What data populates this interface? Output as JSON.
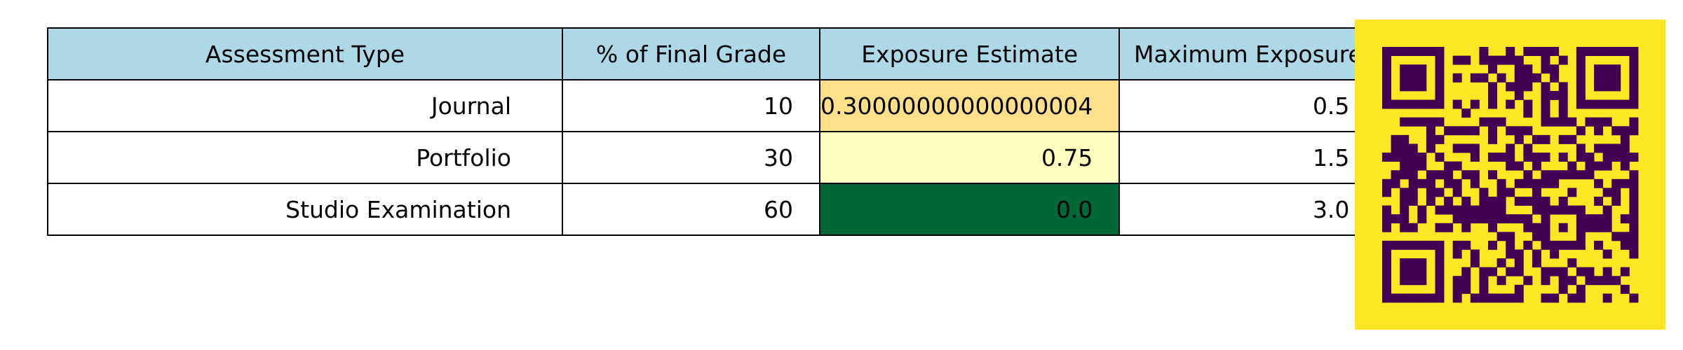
{
  "chart_data": {
    "type": "table",
    "columns": [
      "Assessment Type",
      "% of Final Grade",
      "Exposure Estimate",
      "Maximum Exposure"
    ],
    "rows": [
      {
        "type": "Journal",
        "pct": "10",
        "exposure": "0.30000000000000004",
        "max": "0.5"
      },
      {
        "type": "Portfolio",
        "pct": "30",
        "exposure": "0.75",
        "max": "1.5"
      },
      {
        "type": "Studio Examination",
        "pct": "60",
        "exposure": "0.0",
        "max": "3.0"
      }
    ],
    "exposure_colors": [
      "#fee08b",
      "#ffffbf",
      "#006837"
    ]
  },
  "colors": {
    "header_background": "#add8e6",
    "qr_background": "#fde725",
    "qr_foreground": "#440154"
  },
  "qr_icon": "qr-code-icon"
}
